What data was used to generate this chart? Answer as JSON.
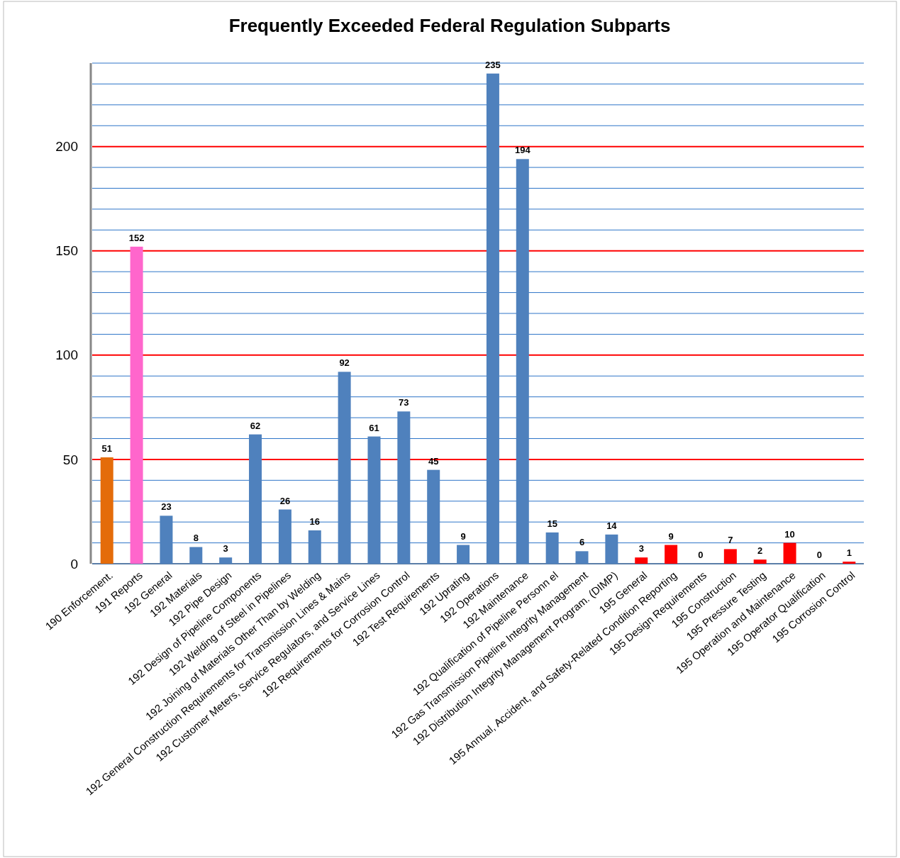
{
  "chart_data": {
    "type": "bar",
    "title": "Frequently Exceeded Federal Regulation Subparts",
    "categories": [
      "190 Enforcement.",
      "191 Reports",
      "192 General",
      "192 Materials",
      "192 Pipe Design",
      "192 Design of Pipeline Components",
      "192 Welding of Steel in Pipelines",
      "192 Joining of Materials Other Than by Welding",
      "192 General Construction Requirements for Transmission Lines & Mains",
      "192 Customer Meters, Service Regulators, and Service Lines",
      "192 Requirements for Corrosion Control",
      "192 Test Requirements",
      "192 Uprating",
      "192 Operations",
      "192 Maintenance",
      "192 Qualification of Pipeline Personn el",
      "192 Gas Transmission Pipeline Integrity Management",
      "192 Distribution Integrity Management Program. (DIMP)",
      "195 General",
      "195 Annual, Accident, and Safety-Related Condition Reporting",
      "195 Design Requirements",
      "195 Construction",
      "195 Pressure Testing",
      "195 Operation and Maintenance",
      "195 Operator Qualification",
      "195 Corrosion Control"
    ],
    "values": [
      51,
      152,
      23,
      8,
      3,
      62,
      26,
      16,
      92,
      61,
      73,
      45,
      9,
      235,
      194,
      15,
      6,
      14,
      3,
      9,
      0,
      7,
      2,
      10,
      0,
      1
    ],
    "colors": [
      "#e46c0a",
      "#ff66cc",
      "#4f81bd",
      "#4f81bd",
      "#4f81bd",
      "#4f81bd",
      "#4f81bd",
      "#4f81bd",
      "#4f81bd",
      "#4f81bd",
      "#4f81bd",
      "#4f81bd",
      "#4f81bd",
      "#4f81bd",
      "#4f81bd",
      "#4f81bd",
      "#4f81bd",
      "#4f81bd",
      "#ff0000",
      "#ff0000",
      "#ff0000",
      "#ff0000",
      "#ff0000",
      "#ff0000",
      "#ff0000",
      "#ff0000"
    ],
    "data_labels": true,
    "ylim": [
      0,
      240
    ],
    "yticks": [
      0,
      {
        "value": 10,
        "label": null
      },
      {
        "value": 20,
        "label": null
      },
      {
        "value": 30,
        "label": null
      },
      {
        "value": 40,
        "label": null
      },
      50,
      {
        "value": 60,
        "label": null
      },
      {
        "value": 70,
        "label": null
      },
      {
        "value": 80,
        "label": null
      },
      {
        "value": 90,
        "label": null
      },
      100,
      {
        "value": 110,
        "label": null
      },
      {
        "value": 120,
        "label": null
      },
      {
        "value": 130,
        "label": null
      },
      {
        "value": 140,
        "label": null
      },
      150,
      {
        "value": 160,
        "label": null
      },
      {
        "value": 170,
        "label": null
      },
      {
        "value": 180,
        "label": null
      },
      {
        "value": 190,
        "label": null
      },
      200,
      {
        "value": 210,
        "label": null
      },
      {
        "value": 220,
        "label": null
      },
      {
        "value": 230,
        "label": null
      },
      {
        "value": 240,
        "label": null
      }
    ],
    "grid": true
  }
}
